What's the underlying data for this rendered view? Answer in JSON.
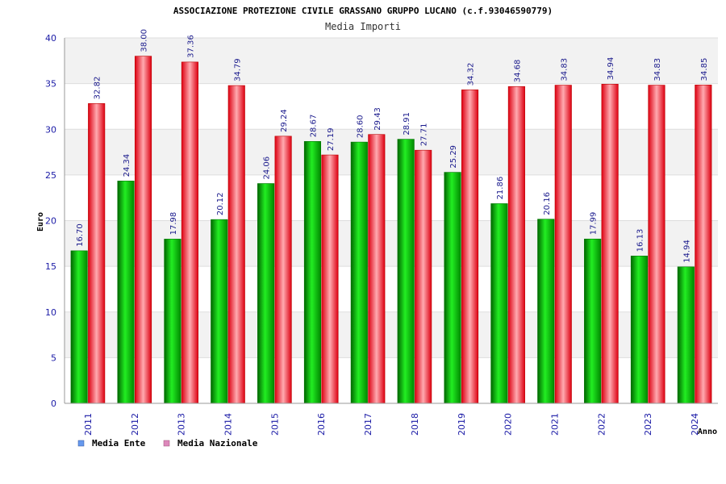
{
  "chart_data": {
    "type": "bar",
    "title": "ASSOCIAZIONE PROTEZIONE CIVILE GRASSANO GRUPPO LUCANO (c.f.93046590779)",
    "subtitle": "Media Importi",
    "xlabel": "Anno",
    "ylabel": "Euro",
    "ylim": [
      0,
      40
    ],
    "yticks": [
      0,
      5,
      10,
      15,
      20,
      25,
      30,
      35,
      40
    ],
    "grid": true,
    "legend_position": "bottom-left",
    "categories": [
      "2011",
      "2012",
      "2013",
      "2014",
      "2015",
      "2016",
      "2017",
      "2018",
      "2019",
      "2020",
      "2021",
      "2022",
      "2023",
      "2024"
    ],
    "series": [
      {
        "name": "Media Ente",
        "legend_color": "#6699ee",
        "bar_color": "#00bb00",
        "values": [
          16.7,
          24.34,
          17.98,
          20.12,
          24.06,
          28.67,
          28.6,
          28.91,
          25.29,
          21.86,
          20.16,
          17.99,
          16.13,
          14.94
        ],
        "labels": [
          "16.70",
          "24.34",
          "17.98",
          "20.12",
          "24.06",
          "28.67",
          "28.60",
          "28.91",
          "25.29",
          "21.86",
          "20.16",
          "17.99",
          "16.13",
          "14.94"
        ]
      },
      {
        "name": "Media Nazionale",
        "legend_color": "#dd88bb",
        "bar_color": "#ee1122",
        "values": [
          32.82,
          38.0,
          37.36,
          34.79,
          29.24,
          27.19,
          29.43,
          27.71,
          34.32,
          34.68,
          34.83,
          34.94,
          34.83,
          34.85
        ],
        "labels": [
          "32.82",
          "38.00",
          "37.36",
          "34.79",
          "29.24",
          "27.19",
          "29.43",
          "27.71",
          "34.32",
          "34.68",
          "34.83",
          "34.94",
          "34.83",
          "34.85"
        ]
      }
    ]
  }
}
